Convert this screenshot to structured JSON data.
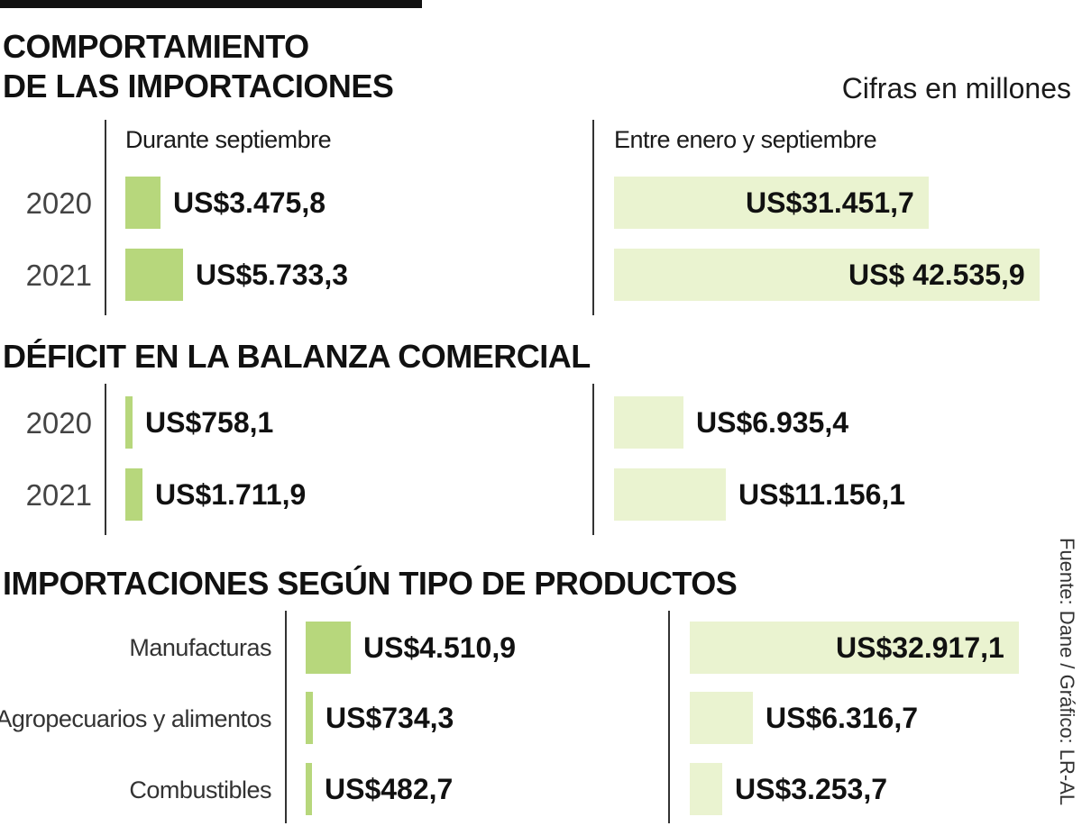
{
  "header": {
    "title_line1": "COMPORTAMIENTO",
    "title_line2": "DE LAS IMPORTACIONES",
    "units_note": "Cifras en millones"
  },
  "column_headers": {
    "september": "Durante septiembre",
    "jan_sep": "Entre enero y septiembre"
  },
  "sections": {
    "imports": {
      "rows": [
        {
          "label": "2020",
          "september_label": "US$3.475,8",
          "jan_sep_label": "US$31.451,7"
        },
        {
          "label": "2021",
          "september_label": "US$5.733,3",
          "jan_sep_label": "US$ 42.535,9"
        }
      ]
    },
    "deficit": {
      "title": "DÉFICIT EN LA BALANZA COMERCIAL",
      "rows": [
        {
          "label": "2020",
          "september_label": "US$758,1",
          "jan_sep_label": "US$6.935,4"
        },
        {
          "label": "2021",
          "september_label": "US$1.711,9",
          "jan_sep_label": "US$11.156,1"
        }
      ]
    },
    "products": {
      "title": "IMPORTACIONES SEGÚN TIPO DE PRODUCTOS",
      "rows": [
        {
          "label": "Manufacturas",
          "september_label": "US$4.510,9",
          "jan_sep_label": "US$32.917,1"
        },
        {
          "label": "Agropecuarios y alimentos",
          "september_label": "US$734,3",
          "jan_sep_label": "US$6.316,7"
        },
        {
          "label": "Combustibles",
          "september_label": "US$482,7",
          "jan_sep_label": "US$3.253,7"
        }
      ]
    }
  },
  "source": "Fuente: Dane / Gráfico: LR-AL",
  "colors": {
    "september_bar": "#b7d77c",
    "jan_sep_bar": "#eaf3d0",
    "text": "#111111"
  },
  "chart_data": [
    {
      "type": "bar",
      "title": "COMPORTAMIENTO DE LAS IMPORTACIONES",
      "categories": [
        "2020",
        "2021"
      ],
      "series": [
        {
          "name": "Durante septiembre",
          "values": [
            3475.8,
            5733.3
          ]
        },
        {
          "name": "Entre enero y septiembre",
          "values": [
            31451.7,
            42535.9
          ]
        }
      ]
    },
    {
      "type": "bar",
      "title": "DÉFICIT EN LA BALANZA COMERCIAL",
      "categories": [
        "2020",
        "2021"
      ],
      "series": [
        {
          "name": "Durante septiembre",
          "values": [
            758.1,
            1711.9
          ]
        },
        {
          "name": "Entre enero y septiembre",
          "values": [
            6935.4,
            11156.1
          ]
        }
      ]
    },
    {
      "type": "bar",
      "title": "IMPORTACIONES SEGÚN TIPO DE PRODUCTOS",
      "categories": [
        "Manufacturas",
        "Agropecuarios y alimentos",
        "Combustibles"
      ],
      "series": [
        {
          "name": "Durante septiembre",
          "values": [
            4510.9,
            734.3,
            482.7
          ]
        },
        {
          "name": "Entre enero y septiembre",
          "values": [
            32917.1,
            6316.7,
            3253.7
          ]
        }
      ]
    }
  ]
}
